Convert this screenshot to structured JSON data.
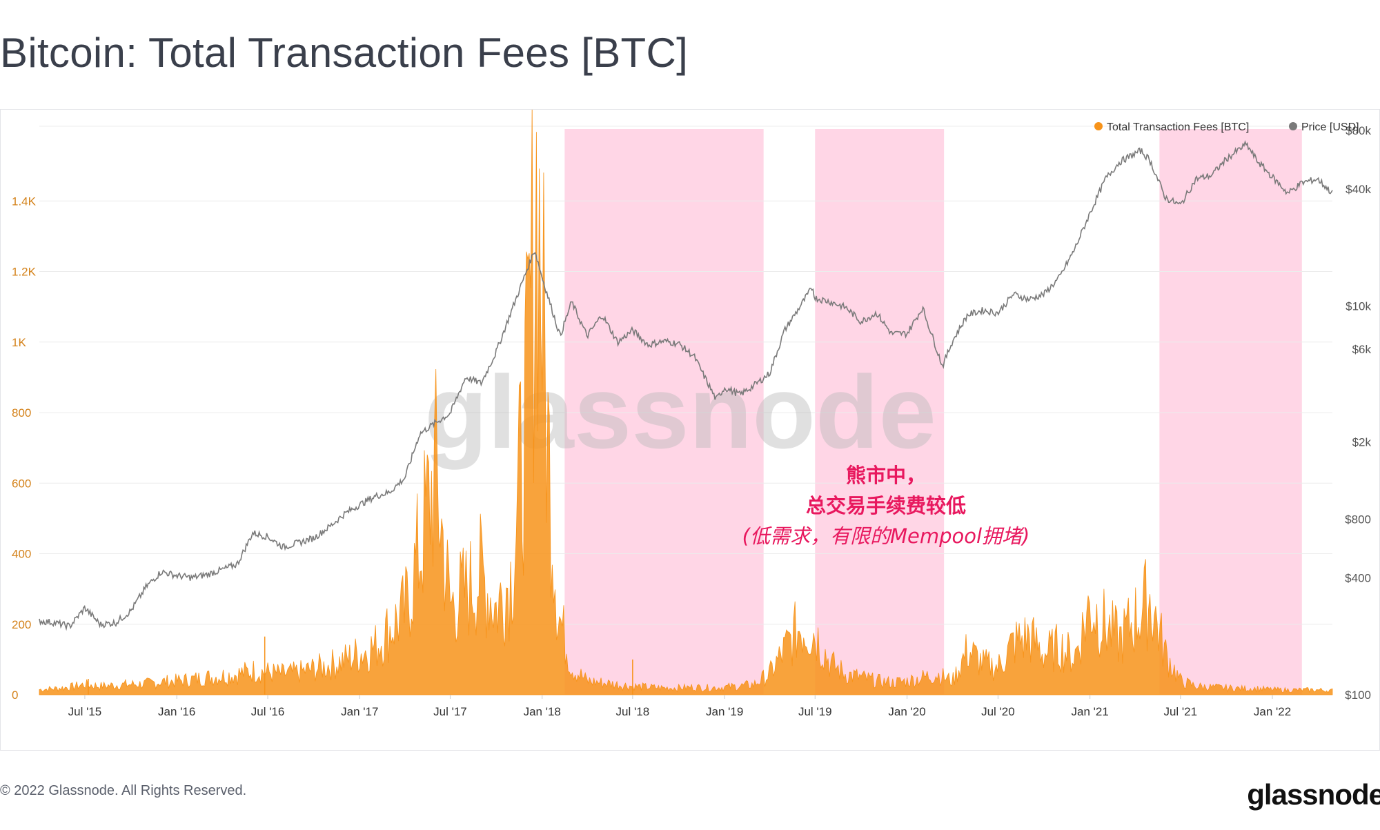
{
  "page": {
    "title": "Bitcoin: Total Transaction Fees [BTC]",
    "copyright": "© 2022 Glassnode. All Rights Reserved.",
    "brand": "glassnode",
    "watermark": "glassnode"
  },
  "colors": {
    "fees": "#f7931a",
    "price": "#7a7a7a",
    "bear_band": "#ffd6e6",
    "annotation": "#e8185e",
    "left_axis": "#d4821a",
    "right_axis": "#555555",
    "grid": "#ececec"
  },
  "chart_data": {
    "type": "area",
    "title": "Bitcoin: Total Transaction Fees [BTC]",
    "xlabel": "",
    "ylabel": "",
    "x_ticks": [
      "Jul '15",
      "Jan '16",
      "Jul '16",
      "Jan '17",
      "Jul '17",
      "Jan '18",
      "Jul '18",
      "Jan '19",
      "Jul '19",
      "Jan '20",
      "Jul '20",
      "Jan '21",
      "Jul '21",
      "Jan '22"
    ],
    "x_range": [
      "2015-04-01",
      "2022-05-01"
    ],
    "y_left": {
      "ticks": [
        "0",
        "200",
        "400",
        "600",
        "800",
        "1K",
        "1.2K",
        "1.4K"
      ],
      "tick_values": [
        0,
        200,
        400,
        600,
        800,
        1000,
        1200,
        1400
      ],
      "ylim": [
        0,
        1600
      ]
    },
    "y_right": {
      "scale": "log",
      "ticks": [
        "$100",
        "$400",
        "$800",
        "$2k",
        "$6k",
        "$10k",
        "$40k",
        "$80k"
      ],
      "tick_values": [
        100,
        400,
        800,
        2000,
        6000,
        10000,
        40000,
        80000
      ],
      "ylim": [
        100,
        80000
      ]
    },
    "legend": {
      "placement": "top-right",
      "entries": [
        "Total Transaction Fees [BTC]",
        "Price [USD]"
      ]
    },
    "grid": true,
    "bear_market_ranges": [
      [
        "2018-02-15",
        "2019-03-20"
      ],
      [
        "2019-07-01",
        "2020-03-15"
      ],
      [
        "2021-05-20",
        "2022-03-01"
      ]
    ],
    "annotation": {
      "line1": "熊市中，",
      "line2": "总交易手续费较低",
      "line3": "(低需求，有限的Mempool拥堵)"
    },
    "series": [
      {
        "name": "Total Transaction Fees [BTC]",
        "axis": "left",
        "style": "area",
        "points": [
          [
            "2015-04-01",
            15
          ],
          [
            "2015-05-01",
            18
          ],
          [
            "2015-06-01",
            22
          ],
          [
            "2015-07-01",
            30
          ],
          [
            "2015-08-01",
            25
          ],
          [
            "2015-09-01",
            28
          ],
          [
            "2015-10-01",
            30
          ],
          [
            "2015-11-01",
            32
          ],
          [
            "2015-12-01",
            38
          ],
          [
            "2016-01-01",
            40
          ],
          [
            "2016-02-01",
            45
          ],
          [
            "2016-03-01",
            50
          ],
          [
            "2016-04-01",
            55
          ],
          [
            "2016-05-01",
            60
          ],
          [
            "2016-06-01",
            70
          ],
          [
            "2016-07-01",
            65
          ],
          [
            "2016-08-01",
            60
          ],
          [
            "2016-09-01",
            65
          ],
          [
            "2016-10-01",
            75
          ],
          [
            "2016-11-01",
            85
          ],
          [
            "2016-12-01",
            100
          ],
          [
            "2017-01-01",
            120
          ],
          [
            "2017-02-01",
            140
          ],
          [
            "2017-03-01",
            190
          ],
          [
            "2017-04-01",
            240
          ],
          [
            "2017-05-01",
            420
          ],
          [
            "2017-06-01",
            650
          ],
          [
            "2017-07-01",
            260
          ],
          [
            "2017-08-01",
            300
          ],
          [
            "2017-09-01",
            350
          ],
          [
            "2017-10-01",
            250
          ],
          [
            "2017-11-01",
            350
          ],
          [
            "2017-12-01",
            850
          ],
          [
            "2017-12-22",
            1500
          ],
          [
            "2018-01-10",
            800
          ],
          [
            "2018-02-01",
            250
          ],
          [
            "2018-03-01",
            80
          ],
          [
            "2018-04-01",
            40
          ],
          [
            "2018-05-01",
            35
          ],
          [
            "2018-06-01",
            30
          ],
          [
            "2018-07-01",
            25
          ],
          [
            "2018-08-01",
            22
          ],
          [
            "2018-09-01",
            20
          ],
          [
            "2018-10-01",
            20
          ],
          [
            "2018-11-01",
            22
          ],
          [
            "2018-12-01",
            20
          ],
          [
            "2019-01-01",
            22
          ],
          [
            "2019-02-01",
            25
          ],
          [
            "2019-03-01",
            30
          ],
          [
            "2019-04-01",
            60
          ],
          [
            "2019-05-01",
            130
          ],
          [
            "2019-06-01",
            200
          ],
          [
            "2019-07-01",
            180
          ],
          [
            "2019-08-01",
            90
          ],
          [
            "2019-09-01",
            60
          ],
          [
            "2019-10-01",
            50
          ],
          [
            "2019-11-01",
            40
          ],
          [
            "2019-12-01",
            35
          ],
          [
            "2020-01-01",
            40
          ],
          [
            "2020-02-01",
            50
          ],
          [
            "2020-03-01",
            60
          ],
          [
            "2020-04-01",
            40
          ],
          [
            "2020-05-01",
            130
          ],
          [
            "2020-06-01",
            90
          ],
          [
            "2020-07-01",
            80
          ],
          [
            "2020-08-01",
            150
          ],
          [
            "2020-09-01",
            170
          ],
          [
            "2020-10-01",
            120
          ],
          [
            "2020-11-01",
            140
          ],
          [
            "2020-12-01",
            110
          ],
          [
            "2021-01-01",
            260
          ],
          [
            "2021-02-01",
            200
          ],
          [
            "2021-03-01",
            160
          ],
          [
            "2021-04-01",
            220
          ],
          [
            "2021-05-01",
            280
          ],
          [
            "2021-06-01",
            120
          ],
          [
            "2021-07-01",
            40
          ],
          [
            "2021-08-01",
            25
          ],
          [
            "2021-09-01",
            22
          ],
          [
            "2021-10-01",
            20
          ],
          [
            "2021-11-01",
            18
          ],
          [
            "2021-12-01",
            18
          ],
          [
            "2022-01-01",
            15
          ],
          [
            "2022-02-01",
            14
          ],
          [
            "2022-03-01",
            14
          ],
          [
            "2022-04-01",
            14
          ],
          [
            "2022-05-01",
            12
          ]
        ]
      },
      {
        "name": "Price [USD]",
        "axis": "right",
        "style": "line",
        "points": [
          [
            "2015-04-01",
            240
          ],
          [
            "2015-05-01",
            235
          ],
          [
            "2015-06-01",
            225
          ],
          [
            "2015-07-01",
            280
          ],
          [
            "2015-08-01",
            230
          ],
          [
            "2015-09-01",
            235
          ],
          [
            "2015-10-01",
            270
          ],
          [
            "2015-11-01",
            360
          ],
          [
            "2015-12-01",
            430
          ],
          [
            "2016-01-01",
            410
          ],
          [
            "2016-02-01",
            400
          ],
          [
            "2016-03-01",
            415
          ],
          [
            "2016-04-01",
            440
          ],
          [
            "2016-05-01",
            470
          ],
          [
            "2016-06-01",
            680
          ],
          [
            "2016-07-01",
            650
          ],
          [
            "2016-08-01",
            575
          ],
          [
            "2016-09-01",
            605
          ],
          [
            "2016-10-01",
            640
          ],
          [
            "2016-11-01",
            730
          ],
          [
            "2016-12-01",
            850
          ],
          [
            "2017-01-01",
            950
          ],
          [
            "2017-02-01",
            1050
          ],
          [
            "2017-03-01",
            1100
          ],
          [
            "2017-04-01",
            1300
          ],
          [
            "2017-05-01",
            2200
          ],
          [
            "2017-06-01",
            2500
          ],
          [
            "2017-07-01",
            2800
          ],
          [
            "2017-08-01",
            4300
          ],
          [
            "2017-09-01",
            4000
          ],
          [
            "2017-10-01",
            5800
          ],
          [
            "2017-11-01",
            9500
          ],
          [
            "2017-12-17",
            19500
          ],
          [
            "2018-01-01",
            14000
          ],
          [
            "2018-02-06",
            7000
          ],
          [
            "2018-03-01",
            10500
          ],
          [
            "2018-04-01",
            7000
          ],
          [
            "2018-05-01",
            9000
          ],
          [
            "2018-06-01",
            6500
          ],
          [
            "2018-07-01",
            7500
          ],
          [
            "2018-08-01",
            6300
          ],
          [
            "2018-09-01",
            6600
          ],
          [
            "2018-10-01",
            6400
          ],
          [
            "2018-11-01",
            5500
          ],
          [
            "2018-12-15",
            3300
          ],
          [
            "2019-01-01",
            3800
          ],
          [
            "2019-02-01",
            3500
          ],
          [
            "2019-03-01",
            3900
          ],
          [
            "2019-04-01",
            4500
          ],
          [
            "2019-05-01",
            7500
          ],
          [
            "2019-06-26",
            12500
          ],
          [
            "2019-07-01",
            11000
          ],
          [
            "2019-08-01",
            10500
          ],
          [
            "2019-09-01",
            9800
          ],
          [
            "2019-10-01",
            8300
          ],
          [
            "2019-11-01",
            9200
          ],
          [
            "2019-12-01",
            7200
          ],
          [
            "2020-01-01",
            7200
          ],
          [
            "2020-02-01",
            9800
          ],
          [
            "2020-03-12",
            4900
          ],
          [
            "2020-04-01",
            6600
          ],
          [
            "2020-05-01",
            9000
          ],
          [
            "2020-06-01",
            9500
          ],
          [
            "2020-07-01",
            9200
          ],
          [
            "2020-08-01",
            11500
          ],
          [
            "2020-09-01",
            10800
          ],
          [
            "2020-10-01",
            11500
          ],
          [
            "2020-11-01",
            14000
          ],
          [
            "2020-12-01",
            19500
          ],
          [
            "2021-01-01",
            30000
          ],
          [
            "2021-02-01",
            45000
          ],
          [
            "2021-03-01",
            55000
          ],
          [
            "2021-04-13",
            63000
          ],
          [
            "2021-05-01",
            56000
          ],
          [
            "2021-06-01",
            36000
          ],
          [
            "2021-07-01",
            33000
          ],
          [
            "2021-08-01",
            45000
          ],
          [
            "2021-09-01",
            47000
          ],
          [
            "2021-10-01",
            57000
          ],
          [
            "2021-11-10",
            68000
          ],
          [
            "2021-12-01",
            56000
          ],
          [
            "2022-01-01",
            46000
          ],
          [
            "2022-02-01",
            38000
          ],
          [
            "2022-03-01",
            43000
          ],
          [
            "2022-04-01",
            45000
          ],
          [
            "2022-05-01",
            38000
          ]
        ]
      }
    ]
  }
}
